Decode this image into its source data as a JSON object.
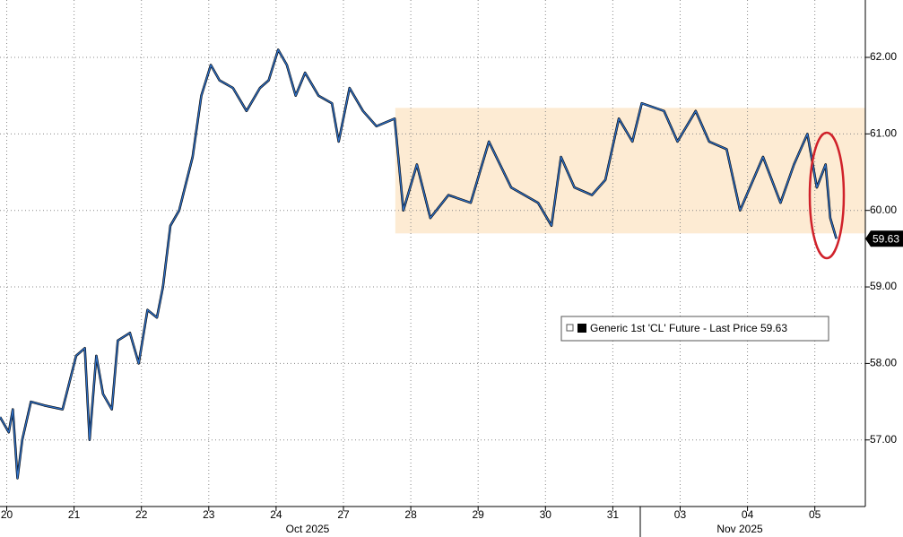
{
  "chart_data": {
    "type": "line",
    "x": [
      -0.1,
      0.03,
      0.09,
      0.16,
      0.23,
      0.36,
      0.56,
      0.83,
      1.03,
      1.16,
      1.23,
      1.33,
      1.43,
      1.56,
      1.65,
      1.83,
      1.96,
      2.09,
      2.23,
      2.32,
      2.43,
      2.56,
      2.76,
      2.89,
      3.03,
      3.16,
      3.36,
      3.56,
      3.76,
      3.89,
      4.03,
      4.16,
      4.29,
      4.43,
      4.63,
      4.83,
      4.93,
      5.09,
      5.29,
      5.49,
      5.76,
      5.89,
      6.09,
      6.29,
      6.56,
      6.89,
      7.16,
      7.49,
      7.89,
      8.09,
      8.23,
      8.43,
      8.69,
      8.89,
      9.09,
      9.29,
      9.43,
      9.76,
      9.96,
      10.23,
      10.43,
      10.69,
      10.89,
      11.23,
      11.49,
      11.69,
      11.89,
      12.03,
      12.16,
      12.23,
      12.32
    ],
    "series": [
      {
        "name": "Generic 1st 'CL' Future - Last Price",
        "color": "#2f6fc4",
        "values": [
          57.3,
          57.1,
          57.4,
          56.5,
          57.0,
          57.5,
          57.45,
          57.4,
          58.1,
          58.2,
          57.0,
          58.1,
          57.6,
          57.4,
          58.3,
          58.4,
          58.0,
          58.7,
          58.6,
          59.0,
          59.8,
          60.0,
          60.7,
          61.5,
          61.9,
          61.7,
          61.6,
          61.3,
          61.6,
          61.7,
          62.1,
          61.9,
          61.5,
          61.8,
          61.5,
          61.4,
          60.9,
          61.6,
          61.3,
          61.1,
          61.2,
          60.0,
          60.6,
          59.9,
          60.2,
          60.1,
          60.9,
          60.3,
          60.1,
          59.8,
          60.7,
          60.3,
          60.2,
          60.4,
          61.2,
          60.9,
          61.4,
          61.3,
          60.9,
          61.3,
          60.9,
          60.8,
          60.0,
          60.7,
          60.1,
          60.6,
          61.0,
          60.3,
          60.6,
          59.9,
          59.63
        ],
        "last_value": 59.63
      }
    ],
    "xlim": [
      -0.1,
      12.75
    ],
    "xticks": [
      {
        "value": 0,
        "label": "20"
      },
      {
        "value": 1,
        "label": "21"
      },
      {
        "value": 2,
        "label": "22"
      },
      {
        "value": 3,
        "label": "23"
      },
      {
        "value": 4,
        "label": "24"
      },
      {
        "value": 5,
        "label": "27"
      },
      {
        "value": 6,
        "label": "28"
      },
      {
        "value": 7,
        "label": "29"
      },
      {
        "value": 8,
        "label": "30"
      },
      {
        "value": 9,
        "label": "31"
      },
      {
        "value": 10,
        "label": "03"
      },
      {
        "value": 11,
        "label": "04"
      },
      {
        "value": 12,
        "label": "05"
      }
    ],
    "months": [
      "Oct 2025",
      "Nov 2025"
    ],
    "ylim": [
      56.13,
      62.75
    ],
    "yticks": [
      {
        "value": 57,
        "label": "57.00"
      },
      {
        "value": 58,
        "label": "58.00"
      },
      {
        "value": 59,
        "label": "59.00"
      },
      {
        "value": 60,
        "label": "60.00"
      },
      {
        "value": 61,
        "label": "61.00"
      },
      {
        "value": 62,
        "label": "62.00"
      }
    ],
    "highlight": {
      "xlim": [
        5.77,
        12.75
      ],
      "ylim": [
        59.7,
        61.34
      ],
      "color": "#fdebd3"
    },
    "grid": true
  }
}
